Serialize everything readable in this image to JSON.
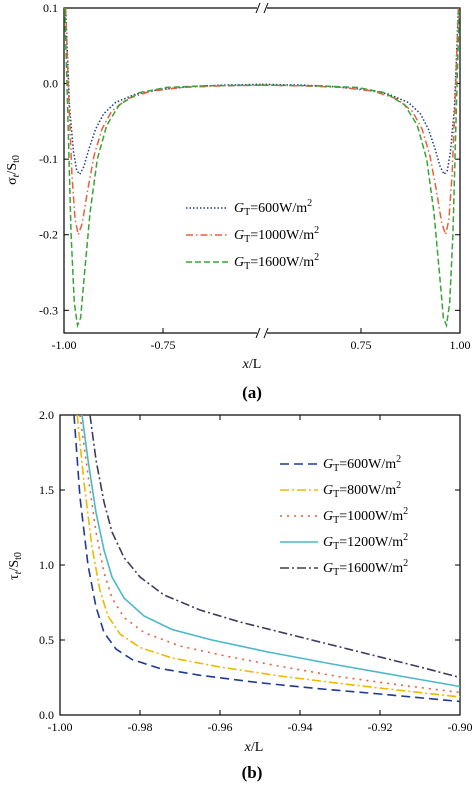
{
  "chart_data": [
    {
      "panel": "(a)",
      "type": "line",
      "xlabel_main": "x",
      "xlabel_sub": "/L",
      "ylabel_main": "σ",
      "ylabel_sub": "t",
      "ylabel_mid": "/S",
      "ylabel_sub2": "t0",
      "ylim": [
        -0.33,
        0.1
      ],
      "axis_break": "x",
      "x_segments": [
        [
          -1.0,
          -0.75
        ],
        [
          0.75,
          1.0
        ]
      ],
      "x_ticks": [
        "-1.00",
        "-0.75",
        "0.75",
        "1.00"
      ],
      "y_ticks": [
        "0.1",
        "0.0",
        "-0.1",
        "-0.2",
        "-0.3"
      ],
      "legend_position": "center",
      "series": [
        {
          "name_main": "G",
          "name_sub": "T",
          "name_rest": "=600W/m",
          "name_sup": "2",
          "color": "#1f3a93",
          "dash": "1.5,2",
          "left": [
            [
              -0.998,
              0.1
            ],
            [
              -0.993,
              -0.03
            ],
            [
              -0.988,
              -0.09
            ],
            [
              -0.984,
              -0.115
            ],
            [
              -0.98,
              -0.12
            ],
            [
              -0.975,
              -0.11
            ],
            [
              -0.968,
              -0.085
            ],
            [
              -0.96,
              -0.06
            ],
            [
              -0.95,
              -0.04
            ],
            [
              -0.935,
              -0.025
            ],
            [
              -0.91,
              -0.014
            ],
            [
              -0.88,
              -0.008
            ],
            [
              -0.84,
              -0.004
            ],
            [
              -0.8,
              -0.002
            ],
            [
              -0.75,
              -0.001
            ]
          ],
          "right": [
            [
              0.75,
              -0.001
            ],
            [
              0.8,
              -0.002
            ],
            [
              0.84,
              -0.004
            ],
            [
              0.88,
              -0.008
            ],
            [
              0.91,
              -0.014
            ],
            [
              0.935,
              -0.025
            ],
            [
              0.95,
              -0.04
            ],
            [
              0.96,
              -0.06
            ],
            [
              0.968,
              -0.085
            ],
            [
              0.975,
              -0.11
            ],
            [
              0.98,
              -0.12
            ],
            [
              0.984,
              -0.115
            ],
            [
              0.988,
              -0.09
            ],
            [
              0.993,
              -0.03
            ],
            [
              0.998,
              0.1
            ]
          ]
        },
        {
          "name_main": "G",
          "name_sub": "T",
          "name_rest": "=1000W/m",
          "name_sup": "2",
          "color": "#e8603c",
          "dash": "7,3,1.5,3",
          "left": [
            [
              -0.998,
              0.1
            ],
            [
              -0.994,
              -0.02
            ],
            [
              -0.99,
              -0.12
            ],
            [
              -0.986,
              -0.18
            ],
            [
              -0.982,
              -0.2
            ],
            [
              -0.977,
              -0.185
            ],
            [
              -0.97,
              -0.14
            ],
            [
              -0.962,
              -0.095
            ],
            [
              -0.952,
              -0.06
            ],
            [
              -0.94,
              -0.037
            ],
            [
              -0.92,
              -0.02
            ],
            [
              -0.89,
              -0.01
            ],
            [
              -0.85,
              -0.005
            ],
            [
              -0.8,
              -0.003
            ],
            [
              -0.75,
              -0.002
            ]
          ],
          "right": [
            [
              0.75,
              -0.002
            ],
            [
              0.8,
              -0.003
            ],
            [
              0.85,
              -0.005
            ],
            [
              0.89,
              -0.01
            ],
            [
              0.92,
              -0.02
            ],
            [
              0.94,
              -0.037
            ],
            [
              0.952,
              -0.06
            ],
            [
              0.962,
              -0.095
            ],
            [
              0.97,
              -0.14
            ],
            [
              0.977,
              -0.185
            ],
            [
              0.982,
              -0.2
            ],
            [
              0.986,
              -0.18
            ],
            [
              0.99,
              -0.12
            ],
            [
              0.994,
              -0.02
            ],
            [
              0.998,
              0.1
            ]
          ]
        },
        {
          "name_main": "G",
          "name_sub": "T",
          "name_rest": "=1600W/m",
          "name_sup": "2",
          "color": "#3aa335",
          "dash": "6,3",
          "left": [
            [
              -0.999,
              0.1
            ],
            [
              -0.995,
              -0.05
            ],
            [
              -0.991,
              -0.2
            ],
            [
              -0.987,
              -0.29
            ],
            [
              -0.983,
              -0.32
            ],
            [
              -0.979,
              -0.31
            ],
            [
              -0.974,
              -0.25
            ],
            [
              -0.967,
              -0.17
            ],
            [
              -0.958,
              -0.1
            ],
            [
              -0.946,
              -0.055
            ],
            [
              -0.93,
              -0.028
            ],
            [
              -0.905,
              -0.012
            ],
            [
              -0.87,
              -0.005
            ],
            [
              -0.82,
              -0.003
            ],
            [
              -0.75,
              -0.002
            ]
          ],
          "right": [
            [
              0.75,
              -0.002
            ],
            [
              0.82,
              -0.003
            ],
            [
              0.87,
              -0.005
            ],
            [
              0.905,
              -0.012
            ],
            [
              0.93,
              -0.028
            ],
            [
              0.946,
              -0.055
            ],
            [
              0.958,
              -0.1
            ],
            [
              0.967,
              -0.17
            ],
            [
              0.974,
              -0.25
            ],
            [
              0.979,
              -0.31
            ],
            [
              0.983,
              -0.32
            ],
            [
              0.987,
              -0.29
            ],
            [
              0.991,
              -0.2
            ],
            [
              0.995,
              -0.05
            ],
            [
              0.999,
              0.1
            ]
          ]
        }
      ]
    },
    {
      "panel": "(b)",
      "type": "line",
      "xlabel_main": "x",
      "xlabel_sub": "/L",
      "ylabel_main": "τ",
      "ylabel_sub": "t",
      "ylabel_mid": "/S",
      "ylabel_sub2": "t0",
      "xlim": [
        -1.0,
        -0.9
      ],
      "ylim": [
        0.0,
        2.0
      ],
      "x_ticks": [
        -1.0,
        -0.98,
        -0.96,
        -0.94,
        -0.92,
        -0.9
      ],
      "x_tick_labels": [
        "-1.00",
        "-0.98",
        "-0.96",
        "-0.94",
        "-0.92",
        "-0.90"
      ],
      "y_ticks": [
        0.0,
        0.5,
        1.0,
        1.5,
        2.0
      ],
      "y_tick_labels": [
        "0.0",
        "0.5",
        "1.0",
        "1.5",
        "2.0"
      ],
      "legend_position": "top-right",
      "series": [
        {
          "name_main": "G",
          "name_sub": "T",
          "name_rest": "=600W/m",
          "name_sup": "2",
          "color": "#1f3a93",
          "dash": "9,5",
          "points": [
            [
              -0.9965,
              2.0
            ],
            [
              -0.995,
              1.45
            ],
            [
              -0.993,
              1.0
            ],
            [
              -0.991,
              0.72
            ],
            [
              -0.989,
              0.55
            ],
            [
              -0.986,
              0.44
            ],
            [
              -0.982,
              0.37
            ],
            [
              -0.975,
              0.31
            ],
            [
              -0.965,
              0.265
            ],
            [
              -0.95,
              0.215
            ],
            [
              -0.935,
              0.175
            ],
            [
              -0.92,
              0.14
            ],
            [
              -0.9,
              0.09
            ]
          ]
        },
        {
          "name_main": "G",
          "name_sub": "T",
          "name_rest": "=800W/m",
          "name_sup": "2",
          "color": "#f0b800",
          "dash": "9,3,2,3",
          "points": [
            [
              -0.9957,
              2.0
            ],
            [
              -0.994,
              1.55
            ],
            [
              -0.992,
              1.12
            ],
            [
              -0.99,
              0.83
            ],
            [
              -0.988,
              0.66
            ],
            [
              -0.985,
              0.54
            ],
            [
              -0.98,
              0.45
            ],
            [
              -0.972,
              0.38
            ],
            [
              -0.96,
              0.32
            ],
            [
              -0.945,
              0.26
            ],
            [
              -0.93,
              0.21
            ],
            [
              -0.915,
              0.165
            ],
            [
              -0.9,
              0.12
            ]
          ]
        },
        {
          "name_main": "G",
          "name_sub": "T",
          "name_rest": "=1000W/m",
          "name_sup": "2",
          "color": "#e8603c",
          "dash": "2,5",
          "points": [
            [
              -0.995,
              2.0
            ],
            [
              -0.993,
              1.6
            ],
            [
              -0.991,
              1.22
            ],
            [
              -0.989,
              0.95
            ],
            [
              -0.987,
              0.78
            ],
            [
              -0.984,
              0.65
            ],
            [
              -0.979,
              0.55
            ],
            [
              -0.97,
              0.46
            ],
            [
              -0.958,
              0.39
            ],
            [
              -0.944,
              0.32
            ],
            [
              -0.93,
              0.255
            ],
            [
              -0.915,
              0.2
            ],
            [
              -0.9,
              0.15
            ]
          ]
        },
        {
          "name_main": "G",
          "name_sub": "T",
          "name_rest": "=1200W/m",
          "name_sup": "2",
          "color": "#4bb8c8",
          "dash": "",
          "points": [
            [
              -0.9945,
              2.0
            ],
            [
              -0.993,
              1.7
            ],
            [
              -0.991,
              1.35
            ],
            [
              -0.989,
              1.1
            ],
            [
              -0.987,
              0.92
            ],
            [
              -0.984,
              0.78
            ],
            [
              -0.979,
              0.66
            ],
            [
              -0.972,
              0.57
            ],
            [
              -0.962,
              0.5
            ],
            [
              -0.948,
              0.42
            ],
            [
              -0.932,
              0.34
            ],
            [
              -0.915,
              0.26
            ],
            [
              -0.9,
              0.19
            ]
          ]
        },
        {
          "name_main": "G",
          "name_sub": "T",
          "name_rest": "=1600W/m",
          "name_sup": "2",
          "color": "#3c3c5c",
          "dash": "9,3,2,3",
          "points": [
            [
              -0.9925,
              2.0
            ],
            [
              -0.991,
              1.7
            ],
            [
              -0.989,
              1.42
            ],
            [
              -0.987,
              1.22
            ],
            [
              -0.984,
              1.05
            ],
            [
              -0.98,
              0.92
            ],
            [
              -0.974,
              0.8
            ],
            [
              -0.965,
              0.7
            ],
            [
              -0.955,
              0.62
            ],
            [
              -0.94,
              0.52
            ],
            [
              -0.925,
              0.42
            ],
            [
              -0.91,
              0.32
            ],
            [
              -0.9,
              0.25
            ]
          ]
        }
      ]
    }
  ]
}
